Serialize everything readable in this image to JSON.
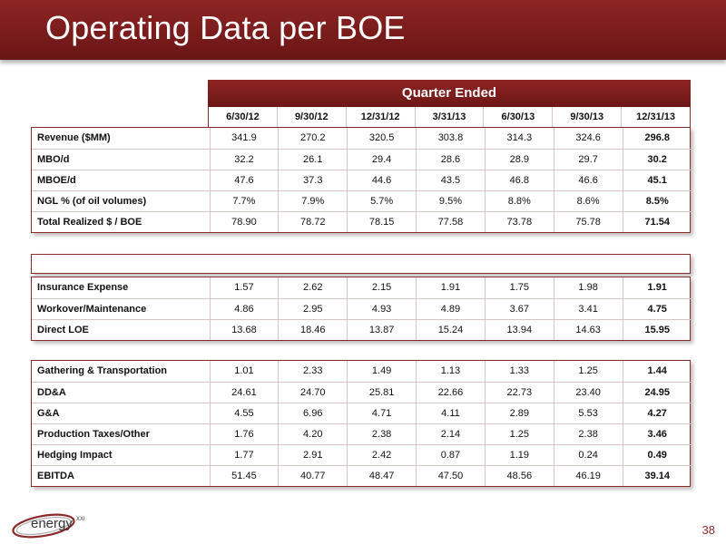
{
  "title": "Operating Data per BOE",
  "quarter_header": "Quarter Ended",
  "dates": [
    "6/30/12",
    "9/30/12",
    "12/31/12",
    "3/31/13",
    "6/30/13",
    "9/30/13",
    "12/31/13"
  ],
  "table1": [
    {
      "label": "Revenue ($MM)",
      "values": [
        "341.9",
        "270.2",
        "320.5",
        "303.8",
        "314.3",
        "324.6",
        "296.8"
      ]
    },
    {
      "label": "MBO/d",
      "values": [
        "32.2",
        "26.1",
        "29.4",
        "28.6",
        "28.9",
        "29.7",
        "30.2"
      ]
    },
    {
      "label": "MBOE/d",
      "values": [
        "47.6",
        "37.3",
        "44.6",
        "43.5",
        "46.8",
        "46.6",
        "45.1"
      ]
    },
    {
      "label": "NGL % (of oil volumes)",
      "values": [
        "7.7%",
        "7.9%",
        "5.7%",
        "9.5%",
        "8.8%",
        "8.6%",
        "8.5%"
      ]
    },
    {
      "label": "Total Realized $ / BOE",
      "values": [
        "78.90",
        "78.72",
        "78.15",
        "77.58",
        "73.78",
        "75.78",
        "71.54"
      ]
    }
  ],
  "table2": [
    {
      "label": "Insurance Expense",
      "values": [
        "1.57",
        "2.62",
        "2.15",
        "1.91",
        "1.75",
        "1.98",
        "1.91"
      ]
    },
    {
      "label": "Workover/Maintenance",
      "values": [
        "4.86",
        "2.95",
        "4.93",
        "4.89",
        "3.67",
        "3.41",
        "4.75"
      ]
    },
    {
      "label": "Direct LOE",
      "values": [
        "13.68",
        "18.46",
        "13.87",
        "15.24",
        "13.94",
        "14.63",
        "15.95"
      ]
    }
  ],
  "table3": [
    {
      "label": "Gathering & Transportation",
      "values": [
        "1.01",
        "2.33",
        "1.49",
        "1.13",
        "1.33",
        "1.25",
        "1.44"
      ]
    },
    {
      "label": "DD&A",
      "values": [
        "24.61",
        "24.70",
        "25.81",
        "22.66",
        "22.73",
        "23.40",
        "24.95"
      ]
    },
    {
      "label": "G&A",
      "values": [
        "4.55",
        "6.96",
        "4.71",
        "4.11",
        "2.89",
        "5.53",
        "4.27"
      ]
    },
    {
      "label": "Production Taxes/Other",
      "values": [
        "1.76",
        "4.20",
        "2.38",
        "2.14",
        "1.25",
        "2.38",
        "3.46"
      ]
    },
    {
      "label": "Hedging Impact",
      "values": [
        "1.77",
        "2.91",
        "2.42",
        "0.87",
        "1.19",
        "0.24",
        "0.49"
      ]
    },
    {
      "label": "EBITDA",
      "values": [
        "51.45",
        "40.77",
        "48.47",
        "47.50",
        "48.56",
        "46.19",
        "39.14"
      ]
    }
  ],
  "logo_text": "energy",
  "logo_superscript": "XXI",
  "page_number": "38",
  "colors": {
    "brand": "#7a1c1c",
    "grid": "#d9c4c4"
  }
}
